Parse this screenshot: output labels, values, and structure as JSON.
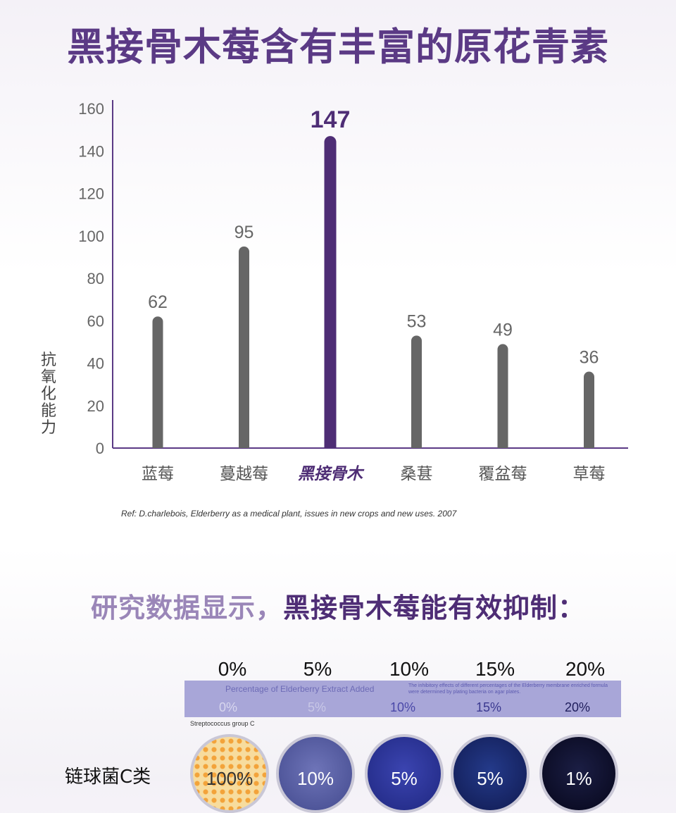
{
  "title": "黑接骨木莓含有丰富的原花青素",
  "chart_data": {
    "type": "bar",
    "ylabel": "抗氧化能力",
    "ylim": [
      0,
      160
    ],
    "yticks": [
      "0",
      "20",
      "40",
      "60",
      "80",
      "100",
      "120",
      "140",
      "160"
    ],
    "categories": [
      "蓝莓",
      "蔓越莓",
      "黑接骨木",
      "桑葚",
      "覆盆莓",
      "草莓"
    ],
    "values": [
      62,
      95,
      147,
      53,
      49,
      36
    ],
    "highlight_index": 2,
    "colors": {
      "bar": "#666666",
      "highlight": "#4e2d75",
      "axis": "#5b3a85"
    }
  },
  "reference": "Ref: D.charlebois, Elderberry as a medical plant, issues in new crops and new uses. 2007",
  "subtitle": {
    "part1": "研究数据显示，",
    "part2": "黑接骨木莓能有效抑制："
  },
  "experiment": {
    "percentages_top": [
      "0%",
      "5%",
      "10%",
      "15%",
      "20%"
    ],
    "band_title": "Percentage of Elderberry Extract Added",
    "band_note": "The inhibitory effects of different percentages of the Elderberry membrane enriched formula were determined by plating bacteria on agar plates.",
    "band_percentages": [
      "0%",
      "5%",
      "10%",
      "15%",
      "20%"
    ],
    "organism": "Streptococcus group C",
    "row_label": "链球菌C类",
    "dish_values": [
      "100%",
      "10%",
      "5%",
      "5%",
      "1%"
    ]
  }
}
